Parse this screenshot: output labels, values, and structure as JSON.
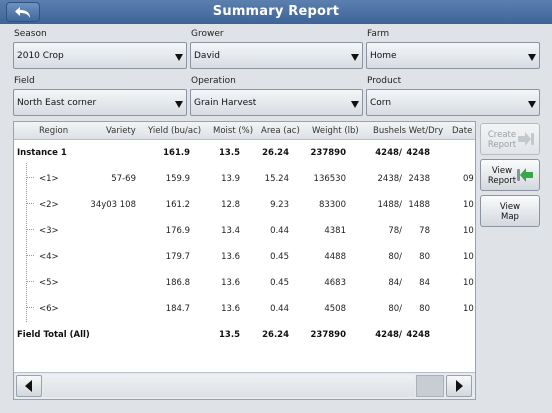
{
  "window": {
    "title": "Summary Report"
  },
  "filters": {
    "season": {
      "label": "Season",
      "value": "2010 Crop"
    },
    "grower": {
      "label": "Grower",
      "value": "David"
    },
    "farm": {
      "label": "Farm",
      "value": "Home"
    },
    "field": {
      "label": "Field",
      "value": "North East corner"
    },
    "operation": {
      "label": "Operation",
      "value": "Grain Harvest"
    },
    "product": {
      "label": "Product",
      "value": "Corn"
    }
  },
  "table": {
    "headers": [
      "Region",
      "Variety",
      "Yield (bu/ac)",
      "Moist (%)",
      "Area (ac)",
      "Weight (lb)",
      "Bushels Wet/Dry",
      "Date"
    ],
    "rows": [
      {
        "region": "Instance 1",
        "variety": "",
        "yield": "161.9",
        "moist": "13.5",
        "area": "26.24",
        "weight": "237890",
        "wet": "4248/",
        "dry": "4248",
        "date": ""
      },
      {
        "region": "<1>",
        "variety": "57-69",
        "yield": "159.9",
        "moist": "13.9",
        "area": "15.24",
        "weight": "136530",
        "wet": "2438/",
        "dry": "2438",
        "date": "09"
      },
      {
        "region": "<2>",
        "variety": "34y03 108",
        "yield": "161.2",
        "moist": "12.8",
        "area": "9.23",
        "weight": "83300",
        "wet": "1488/",
        "dry": "1488",
        "date": "10"
      },
      {
        "region": "<3>",
        "variety": "",
        "yield": "176.9",
        "moist": "13.4",
        "area": "0.44",
        "weight": "4381",
        "wet": "78/",
        "dry": "78",
        "date": "10"
      },
      {
        "region": "<4>",
        "variety": "",
        "yield": "179.7",
        "moist": "13.6",
        "area": "0.45",
        "weight": "4488",
        "wet": "80/",
        "dry": "80",
        "date": "10"
      },
      {
        "region": "<5>",
        "variety": "",
        "yield": "186.8",
        "moist": "13.6",
        "area": "0.45",
        "weight": "4683",
        "wet": "84/",
        "dry": "84",
        "date": "10"
      },
      {
        "region": "<6>",
        "variety": "",
        "yield": "184.7",
        "moist": "13.6",
        "area": "0.44",
        "weight": "4508",
        "wet": "80/",
        "dry": "80",
        "date": "10"
      },
      {
        "region": "Field Total (All)",
        "variety": "",
        "yield": "",
        "moist": "13.5",
        "area": "26.24",
        "weight": "237890",
        "wet": "4248/",
        "dry": "4248",
        "date": ""
      }
    ]
  },
  "side_buttons": {
    "create_report": {
      "line1": "Create",
      "line2": "Report"
    },
    "view_report": {
      "line1": "View",
      "line2": "Report"
    },
    "view_map": {
      "line1": "View",
      "line2": "Map"
    }
  },
  "colors": {
    "title_bar": "#3e6497",
    "accent_green": "#3aa64a"
  },
  "icons": [
    "back-arrow-icon",
    "dropdown-arrow-icon",
    "scroll-left-icon",
    "scroll-right-icon",
    "arrow-right-icon",
    "arrow-left-green-icon"
  ]
}
